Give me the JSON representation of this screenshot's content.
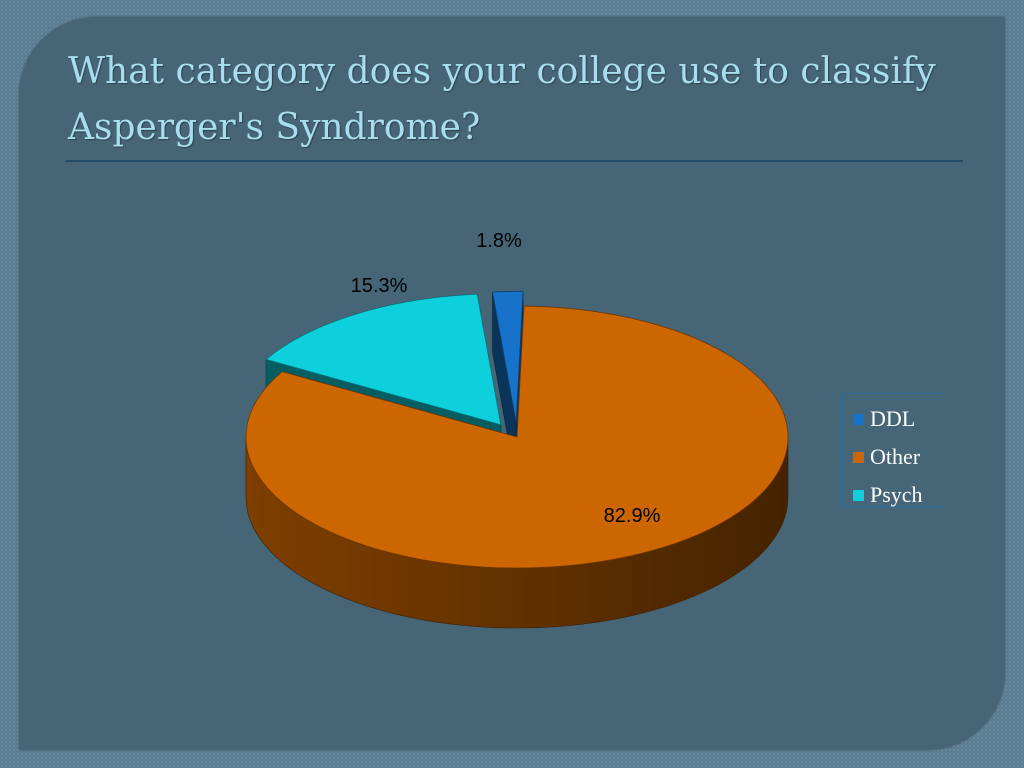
{
  "slide": {
    "title": "What category does your college use to classify Asperger's Syndrome?"
  },
  "chart_data": {
    "type": "pie",
    "style": "3d-exploded",
    "title": "",
    "legend_position": "right",
    "slices": [
      {
        "name": "DDL",
        "value": 1.8,
        "label": "1.8%",
        "color": "#1673c9"
      },
      {
        "name": "Other",
        "value": 82.9,
        "label": "82.9%",
        "color": "#cc6600"
      },
      {
        "name": "Psych",
        "value": 15.3,
        "label": "15.3%",
        "color": "#0dd0dc"
      }
    ]
  }
}
